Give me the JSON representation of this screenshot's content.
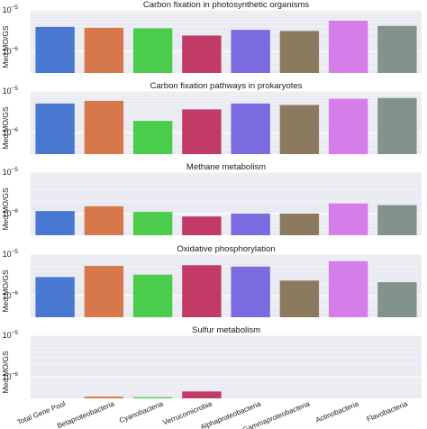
{
  "figure": {
    "ylabel": "Med MO/GS",
    "x_categories": [
      "Total Gene Pool",
      "Betaproteobacteria",
      "Cyanobacteria",
      "Verrucomicrobia",
      "Alphaproteobacteria",
      "Gammaproteobacteria",
      "Actinobacteria",
      "Flavobacteria"
    ]
  },
  "chart_data": [
    {
      "type": "bar",
      "title": "Carbon fixation in photosynthetic organisms",
      "ylabel": "Med MO/GS",
      "yscale": "log",
      "ylim": [
        3e-07,
        1e-05
      ],
      "yticks": [
        "10^-5",
        "10^-6"
      ],
      "categories": [
        "Total Gene Pool",
        "Betaproteobacteria",
        "Cyanobacteria",
        "Verrucomicrobia",
        "Alphaproteobacteria",
        "Gammaproteobacteria",
        "Actinobacteria",
        "Flavobacteria"
      ],
      "values": [
        3.9e-06,
        3.7e-06,
        3.6e-06,
        2.4e-06,
        3.3e-06,
        3.1e-06,
        5.5e-06,
        4.1e-06
      ]
    },
    {
      "type": "bar",
      "title": "Carbon fixation pathways in prokaryotes",
      "ylabel": "Med MO/GS",
      "yscale": "log",
      "ylim": [
        3e-07,
        1e-05
      ],
      "yticks": [
        "10^-5",
        "10^-6"
      ],
      "categories": [
        "Total Gene Pool",
        "Betaproteobacteria",
        "Cyanobacteria",
        "Verrucomicrobia",
        "Alphaproteobacteria",
        "Gammaproteobacteria",
        "Actinobacteria",
        "Flavobacteria"
      ],
      "values": [
        5e-06,
        5.8e-06,
        1.9e-06,
        3.6e-06,
        5e-06,
        4.6e-06,
        6.5e-06,
        6.8e-06
      ]
    },
    {
      "type": "bar",
      "title": "Methane metabolism",
      "ylabel": "Med MO/GS",
      "yscale": "log",
      "ylim": [
        3e-07,
        1e-05
      ],
      "yticks": [
        "10^-5",
        "10^-6"
      ],
      "categories": [
        "Total Gene Pool",
        "Betaproteobacteria",
        "Cyanobacteria",
        "Verrucomicrobia",
        "Alphaproteobacteria",
        "Gammaproteobacteria",
        "Actinobacteria",
        "Flavobacteria"
      ],
      "values": [
        1.15e-06,
        1.5e-06,
        1.1e-06,
        8.5e-07,
        1e-06,
        1e-06,
        1.75e-06,
        1.6e-06
      ]
    },
    {
      "type": "bar",
      "title": "Oxidative phosphorylation",
      "ylabel": "Med MO/GS",
      "yscale": "log",
      "ylim": [
        3e-07,
        1e-05
      ],
      "yticks": [
        "10^-5",
        "10^-6"
      ],
      "categories": [
        "Total Gene Pool",
        "Betaproteobacteria",
        "Cyanobacteria",
        "Verrucomicrobia",
        "Alphaproteobacteria",
        "Gammaproteobacteria",
        "Actinobacteria",
        "Flavobacteria"
      ],
      "values": [
        2.8e-06,
        5.2e-06,
        3.2e-06,
        5.4e-06,
        5e-06,
        2.3e-06,
        6.8e-06,
        2.1e-06
      ]
    },
    {
      "type": "bar",
      "title": "Sulfur metabolism",
      "ylabel": "Med MO/GS",
      "yscale": "log",
      "ylim": [
        3e-07,
        1e-05
      ],
      "yticks": [
        "10^-5",
        "10^-6"
      ],
      "categories": [
        "Total Gene Pool",
        "Betaproteobacteria",
        "Cyanobacteria",
        "Verrucomicrobia",
        "Alphaproteobacteria",
        "Gammaproteobacteria",
        "Actinobacteria",
        "Flavobacteria"
      ],
      "values": [
        null,
        3.3e-07,
        3.2e-07,
        4.4e-07,
        null,
        null,
        null,
        null
      ]
    }
  ],
  "colors": {
    "panel_bg": "#eaeaf2",
    "grid": "#ffffff",
    "bars": [
      "#4878d0",
      "#d6784c",
      "#4ccc4c",
      "#c23b66",
      "#7b6be0",
      "#8c7a5e",
      "#d57ee9",
      "#82938c"
    ]
  }
}
